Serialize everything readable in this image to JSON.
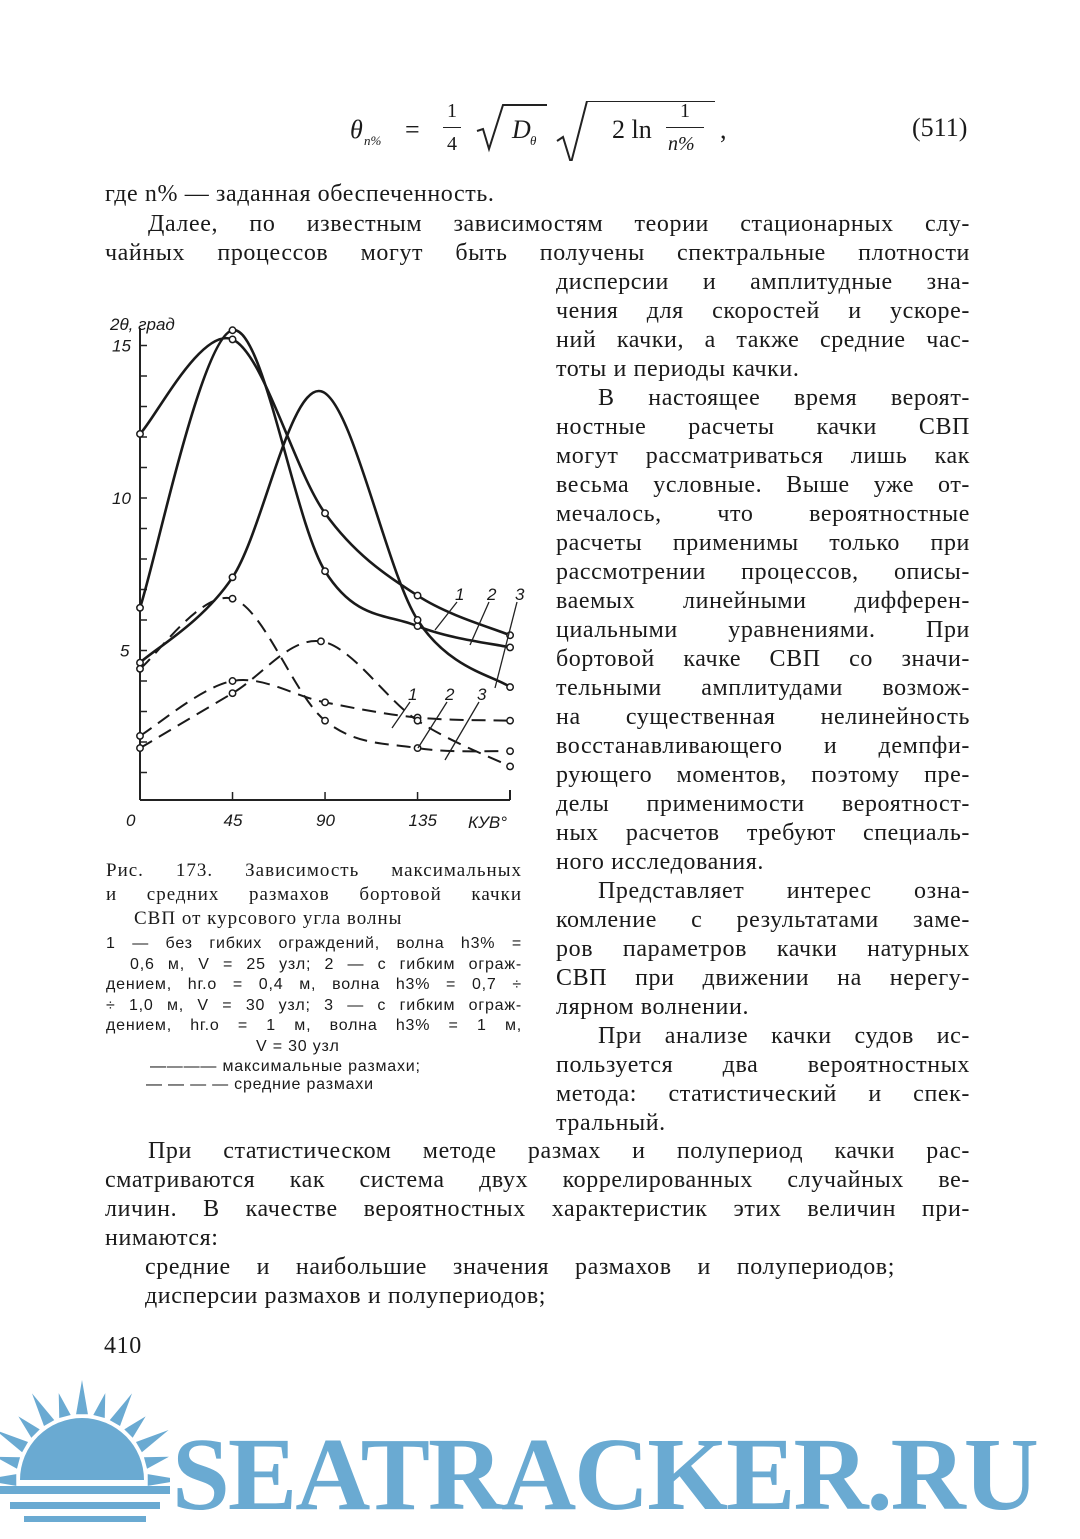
{
  "formula": {
    "lhs": "θ",
    "lhs_sub": "n%",
    "eq": "=",
    "frac_num": "1",
    "frac_den": "4",
    "D": "D",
    "D_sub": "θ",
    "two_ln": "2 ln",
    "frac2_num": "1",
    "frac2_den": "n%",
    "comma": ",",
    "number": "(511)"
  },
  "intro_line": "где n% — заданная обеспеченность.",
  "top_lines": [
    "Далее, по известным зависимостям теории стационарных слу-",
    "чайных процессов могут быть получены спектральные плотности"
  ],
  "right_column": [
    "дисперсии и амплитудные зна-",
    "чения для скоростей и ускоре-",
    "ний качки, а также средние час-",
    "тоты и периоды качки.",
    "В настоящее время вероят-",
    "ностные расчеты качки СВП",
    "могут рассматриваться лишь как",
    "весьма условные. Выше уже от-",
    "мечалось, что вероятностные",
    "расчеты применимы только при",
    "рассмотрении процессов, описы-",
    "ваемых линейными дифферен-",
    "циальными уравнениями. При",
    "бортовой качке СВП со значи-",
    "тельными амплитудами возмож-",
    "на существенная нелинейность",
    "восстанавливающего и демпфи-",
    "рующего моментов, поэтому пре-",
    "делы применимости вероятност-",
    "ных расчетов требуют специаль-",
    "ного исследования.",
    "Представляет интерес озна-",
    "комление с результатами заме-",
    "ров параметров качки натурных",
    "СВП при движении на нерегу-",
    "лярном волнении.",
    "При анализе качки судов ис-",
    "пользуется два вероятностных",
    "метода: статистический и спек-",
    "тральный."
  ],
  "bottom_lines": [
    "При статистическом методе размах и полупериод качки рас-",
    "сматриваются как система двух коррелированных случайных ве-",
    "личин. В качестве вероятностных характеристик этих величин при-",
    "нимаются:",
    "средние и наибольшие значения размахов и полупериодов;",
    "дисперсии размахов и полупериодов;"
  ],
  "caption": {
    "title_lines": [
      "Рис. 173. Зависимость максимальных",
      "и средних размахов бортовой качки",
      "СВП от курсового угла волны"
    ],
    "legend_lines": [
      "1 — без гибких ограждений, волна h3% =",
      "0,6 м, V = 25 узл; 2 — с гибким ограж-",
      "дением, hг.о = 0,4 м, волна h3% = 0,7 ÷",
      "÷ 1,0 м, V = 30 узл; 3 — с гибким ограж-",
      "дением, hг.о = 1 м, волна h3% = 1 м,",
      "V = 30 узл"
    ],
    "solid_label": "———— максимальные размахи;",
    "dashed_label": "— — — — средние размахи"
  },
  "page_number": "410",
  "watermark": "SEATRACKER.RU",
  "chart_data": {
    "type": "line",
    "xlabel": "КУВ°",
    "ylabel": "2θ, град",
    "x_ticks": [
      "0",
      "45",
      "90",
      "135"
    ],
    "y_ticks": [
      "0",
      "5",
      "10",
      "15"
    ],
    "xlim": [
      0,
      180
    ],
    "ylim": [
      0,
      15
    ],
    "grid": false,
    "series": [
      {
        "name": "1",
        "style": "solid",
        "x": [
          0,
          45,
          90,
          135,
          180
        ],
        "y": [
          12.1,
          15.2,
          9.5,
          6.8,
          5.5
        ]
      },
      {
        "name": "2",
        "style": "solid",
        "x": [
          0,
          45,
          90,
          135,
          180
        ],
        "y": [
          6.4,
          15.5,
          7.6,
          5.8,
          5.1
        ]
      },
      {
        "name": "3",
        "style": "solid",
        "x": [
          0,
          45,
          88,
          135,
          180
        ],
        "y": [
          4.6,
          7.4,
          13.5,
          6.0,
          3.8
        ]
      },
      {
        "name": "1",
        "style": "dashed",
        "x": [
          0,
          45,
          90,
          135,
          180
        ],
        "y": [
          2.2,
          4.0,
          3.3,
          2.8,
          2.7
        ]
      },
      {
        "name": "2",
        "style": "dashed",
        "x": [
          0,
          45,
          90,
          135,
          180
        ],
        "y": [
          4.4,
          6.7,
          2.7,
          1.8,
          1.7
        ]
      },
      {
        "name": "3",
        "style": "dashed",
        "x": [
          0,
          45,
          88,
          135,
          180
        ],
        "y": [
          1.8,
          3.6,
          5.3,
          2.7,
          1.2
        ]
      }
    ]
  }
}
